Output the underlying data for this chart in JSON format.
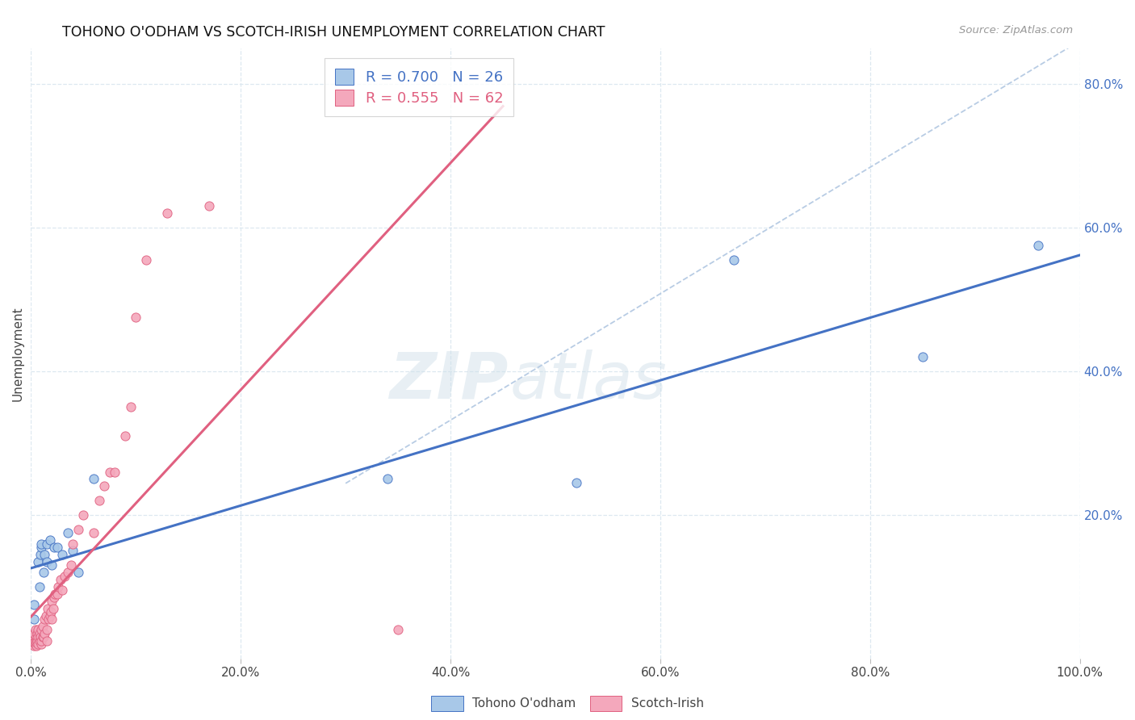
{
  "title": "TOHONO O'ODHAM VS SCOTCH-IRISH UNEMPLOYMENT CORRELATION CHART",
  "source": "Source: ZipAtlas.com",
  "ylabel": "Unemployment",
  "xlim": [
    0,
    1.0
  ],
  "ylim": [
    0,
    0.85
  ],
  "x_tick_labels": [
    "0.0%",
    "20.0%",
    "40.0%",
    "60.0%",
    "80.0%",
    "100.0%"
  ],
  "x_tick_vals": [
    0.0,
    0.2,
    0.4,
    0.6,
    0.8,
    1.0
  ],
  "y_tick_labels": [
    "20.0%",
    "40.0%",
    "60.0%",
    "80.0%"
  ],
  "y_tick_vals": [
    0.2,
    0.4,
    0.6,
    0.8
  ],
  "tohono_color": "#a8c8e8",
  "scotchirish_color": "#f4a8bc",
  "trendline_blue_color": "#4472c4",
  "trendline_pink_color": "#e06080",
  "trendline_dashed_color": "#b8cce4",
  "R_tohono": 0.7,
  "N_tohono": 26,
  "R_scotchirish": 0.555,
  "N_scotchirish": 62,
  "legend_label_tohono": "Tohono O'odham",
  "legend_label_scotchirish": "Scotch-Irish",
  "watermark_zip": "ZIP",
  "watermark_atlas": "atlas",
  "tohono_x": [
    0.003,
    0.003,
    0.005,
    0.007,
    0.008,
    0.009,
    0.01,
    0.01,
    0.012,
    0.013,
    0.015,
    0.015,
    0.018,
    0.02,
    0.022,
    0.025,
    0.03,
    0.035,
    0.04,
    0.045,
    0.06,
    0.34,
    0.52,
    0.67,
    0.85,
    0.96
  ],
  "tohono_y": [
    0.055,
    0.075,
    0.03,
    0.135,
    0.1,
    0.145,
    0.155,
    0.16,
    0.12,
    0.145,
    0.135,
    0.16,
    0.165,
    0.13,
    0.155,
    0.155,
    0.145,
    0.175,
    0.15,
    0.12,
    0.25,
    0.25,
    0.245,
    0.555,
    0.42,
    0.575
  ],
  "scotchirish_x": [
    0.002,
    0.002,
    0.002,
    0.003,
    0.003,
    0.003,
    0.004,
    0.004,
    0.004,
    0.005,
    0.005,
    0.005,
    0.006,
    0.006,
    0.007,
    0.007,
    0.007,
    0.008,
    0.008,
    0.009,
    0.01,
    0.01,
    0.01,
    0.011,
    0.011,
    0.012,
    0.013,
    0.013,
    0.014,
    0.015,
    0.015,
    0.016,
    0.017,
    0.018,
    0.019,
    0.02,
    0.02,
    0.021,
    0.022,
    0.023,
    0.025,
    0.026,
    0.028,
    0.03,
    0.032,
    0.035,
    0.038,
    0.04,
    0.045,
    0.05,
    0.06,
    0.065,
    0.07,
    0.075,
    0.08,
    0.09,
    0.095,
    0.1,
    0.11,
    0.13,
    0.17,
    0.35
  ],
  "scotchirish_y": [
    0.02,
    0.025,
    0.03,
    0.018,
    0.022,
    0.035,
    0.02,
    0.025,
    0.04,
    0.018,
    0.022,
    0.03,
    0.025,
    0.035,
    0.02,
    0.03,
    0.04,
    0.025,
    0.035,
    0.03,
    0.02,
    0.025,
    0.04,
    0.03,
    0.045,
    0.03,
    0.035,
    0.055,
    0.06,
    0.025,
    0.04,
    0.07,
    0.055,
    0.06,
    0.065,
    0.055,
    0.08,
    0.07,
    0.085,
    0.09,
    0.09,
    0.1,
    0.11,
    0.095,
    0.115,
    0.12,
    0.13,
    0.16,
    0.18,
    0.2,
    0.175,
    0.22,
    0.24,
    0.26,
    0.26,
    0.31,
    0.35,
    0.475,
    0.555,
    0.62,
    0.63,
    0.04
  ],
  "background_color": "#ffffff",
  "grid_color": "#dde8f0"
}
